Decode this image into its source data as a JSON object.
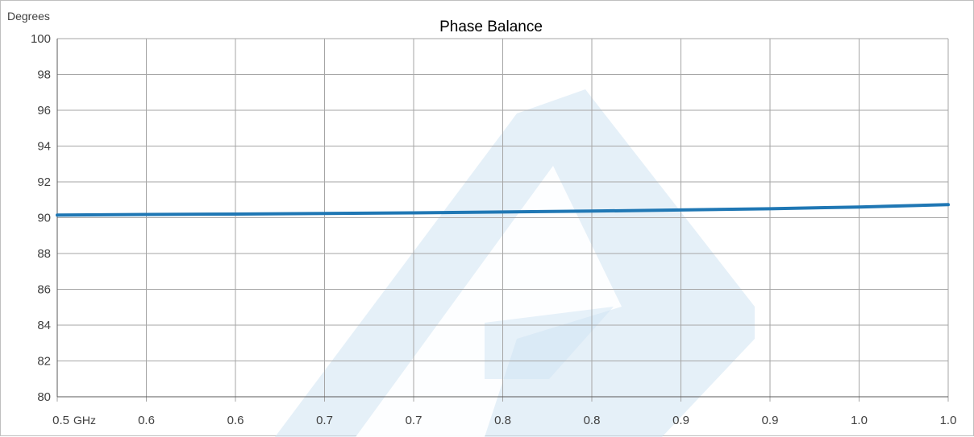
{
  "chart_data": {
    "type": "line",
    "title": "Phase Balance",
    "ylabel": "Degrees",
    "xunit": "GHz",
    "ylim": [
      80,
      100
    ],
    "xlim": [
      0.5,
      1.0
    ],
    "x_tick_values": [
      0.5,
      0.55,
      0.6,
      0.65,
      0.7,
      0.75,
      0.8,
      0.85,
      0.9,
      0.95,
      1.0
    ],
    "x_tick_labels": [
      "0.5",
      "0.6",
      "0.6",
      "0.7",
      "0.7",
      "0.8",
      "0.8",
      "0.9",
      "0.9",
      "1.0",
      "1.0"
    ],
    "y_ticks": [
      80,
      82,
      84,
      86,
      88,
      90,
      92,
      94,
      96,
      98,
      100
    ],
    "grid": true,
    "line_color": "#1f77b4",
    "watermark_color": "#cfe3f3",
    "series": [
      {
        "x": [
          0.5,
          0.55,
          0.6,
          0.65,
          0.7,
          0.75,
          0.8,
          0.85,
          0.9,
          0.95,
          1.0
        ],
        "y": [
          90.15,
          90.18,
          90.2,
          90.24,
          90.27,
          90.32,
          90.37,
          90.43,
          90.5,
          90.6,
          90.73
        ]
      }
    ]
  }
}
